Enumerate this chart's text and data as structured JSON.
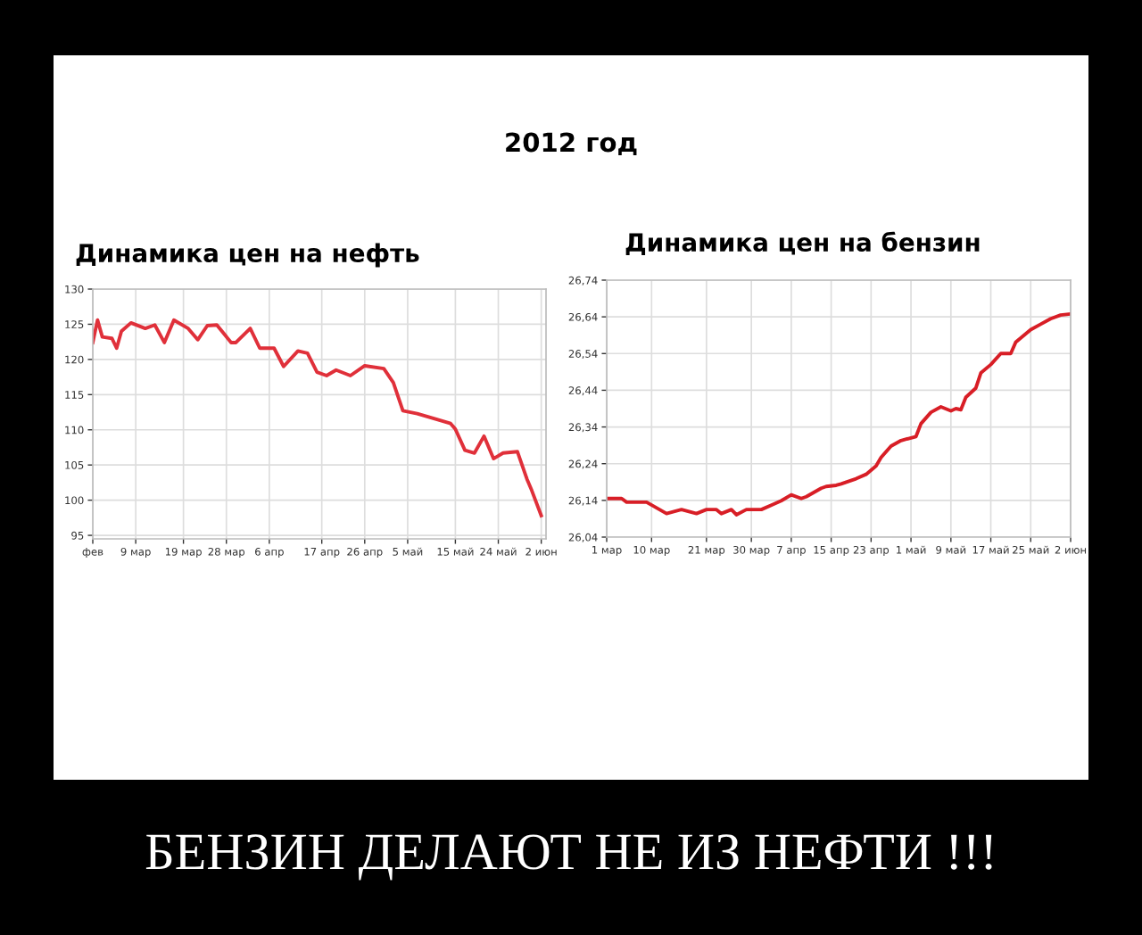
{
  "chart_data": [
    {
      "type": "line",
      "title": "Динамика цен на нефть",
      "annotations": [
        "2012 год",
        "БЕНЗИН ДЕЛАЮТ НЕ ИЗ НЕФТИ !!!"
      ],
      "grid": true,
      "xlim": [
        "2012-02-29",
        "2012-06-03"
      ],
      "xticks": [
        {
          "value": "2012-02-29",
          "label": "фев"
        },
        {
          "value": "2012-03-09",
          "label": "9 мар"
        },
        {
          "value": "2012-03-19",
          "label": "19 мар"
        },
        {
          "value": "2012-03-28",
          "label": "28 мар"
        },
        {
          "value": "2012-04-06",
          "label": "6 апр"
        },
        {
          "value": "2012-04-17",
          "label": "17 апр"
        },
        {
          "value": "2012-04-26",
          "label": "26 апр"
        },
        {
          "value": "2012-05-05",
          "label": "5 май"
        },
        {
          "value": "2012-05-15",
          "label": "15 май"
        },
        {
          "value": "2012-05-24",
          "label": "24 май"
        },
        {
          "value": "2012-06-02",
          "label": "2 июн"
        }
      ],
      "ylim": [
        94.5,
        130
      ],
      "yticks": [
        95,
        100,
        105,
        110,
        115,
        120,
        125,
        130
      ],
      "series": [
        {
          "color": "#e0303a",
          "x": [
            "2012-02-29",
            "2012-03-01",
            "2012-03-02",
            "2012-03-04",
            "2012-03-05",
            "2012-03-06",
            "2012-03-08",
            "2012-03-11",
            "2012-03-13",
            "2012-03-15",
            "2012-03-17",
            "2012-03-20",
            "2012-03-22",
            "2012-03-24",
            "2012-03-26",
            "2012-03-29",
            "2012-03-30",
            "2012-04-02",
            "2012-04-04",
            "2012-04-07",
            "2012-04-09",
            "2012-04-12",
            "2012-04-14",
            "2012-04-16",
            "2012-04-18",
            "2012-04-20",
            "2012-04-23",
            "2012-04-26",
            "2012-04-30",
            "2012-05-02",
            "2012-05-04",
            "2012-05-07",
            "2012-05-11",
            "2012-05-14",
            "2012-05-15",
            "2012-05-17",
            "2012-05-19",
            "2012-05-21",
            "2012-05-23",
            "2012-05-25",
            "2012-05-28",
            "2012-05-30",
            "2012-05-31",
            "2012-06-02"
          ],
          "values": [
            122.4,
            125.6,
            123.2,
            123.0,
            121.6,
            124.0,
            125.2,
            124.4,
            124.9,
            122.4,
            125.6,
            124.4,
            122.8,
            124.8,
            124.9,
            122.4,
            122.4,
            124.4,
            121.6,
            121.6,
            119.0,
            121.2,
            120.9,
            118.2,
            117.7,
            118.5,
            117.7,
            119.1,
            118.7,
            116.7,
            112.7,
            112.3,
            111.5,
            110.9,
            110.1,
            107.1,
            106.7,
            109.1,
            105.9,
            106.7,
            106.9,
            103.0,
            101.4,
            97.8
          ]
        }
      ]
    },
    {
      "type": "line",
      "title": "Динамика цен на бензин",
      "grid": true,
      "xlim": [
        "2012-03-01",
        "2012-06-02"
      ],
      "xticks": [
        {
          "value": "2012-03-01",
          "label": "1 мар"
        },
        {
          "value": "2012-03-10",
          "label": "10 мар"
        },
        {
          "value": "2012-03-21",
          "label": "21 мар"
        },
        {
          "value": "2012-03-30",
          "label": "30 мар"
        },
        {
          "value": "2012-04-07",
          "label": "7 апр"
        },
        {
          "value": "2012-04-15",
          "label": "15 апр"
        },
        {
          "value": "2012-04-23",
          "label": "23 апр"
        },
        {
          "value": "2012-05-01",
          "label": "1 май"
        },
        {
          "value": "2012-05-09",
          "label": "9 май"
        },
        {
          "value": "2012-05-17",
          "label": "17 май"
        },
        {
          "value": "2012-05-25",
          "label": "25 май"
        },
        {
          "value": "2012-06-02",
          "label": "2 июн"
        }
      ],
      "ylim": [
        26.04,
        26.74
      ],
      "yticks": [
        {
          "value": 26.04,
          "label": "26,04"
        },
        {
          "value": 26.14,
          "label": "26,14"
        },
        {
          "value": 26.24,
          "label": "26,24"
        },
        {
          "value": 26.34,
          "label": "26,34"
        },
        {
          "value": 26.44,
          "label": "26,44"
        },
        {
          "value": 26.54,
          "label": "26,54"
        },
        {
          "value": 26.64,
          "label": "26,64"
        },
        {
          "value": 26.74,
          "label": "26,74"
        }
      ],
      "series": [
        {
          "color": "#d81e26",
          "x": [
            "2012-03-01",
            "2012-03-04",
            "2012-03-05",
            "2012-03-09",
            "2012-03-13",
            "2012-03-16",
            "2012-03-19",
            "2012-03-21",
            "2012-03-23",
            "2012-03-24",
            "2012-03-26",
            "2012-03-27",
            "2012-03-29",
            "2012-04-01",
            "2012-04-03",
            "2012-04-05",
            "2012-04-07",
            "2012-04-09",
            "2012-04-10",
            "2012-04-13",
            "2012-04-14",
            "2012-04-16",
            "2012-04-17",
            "2012-04-20",
            "2012-04-22",
            "2012-04-24",
            "2012-04-25",
            "2012-04-27",
            "2012-04-29",
            "2012-05-02",
            "2012-05-03",
            "2012-05-05",
            "2012-05-07",
            "2012-05-09",
            "2012-05-10",
            "2012-05-11",
            "2012-05-12",
            "2012-05-14",
            "2012-05-15",
            "2012-05-17",
            "2012-05-19",
            "2012-05-21",
            "2012-05-22",
            "2012-05-25",
            "2012-05-27",
            "2012-05-29",
            "2012-05-31",
            "2012-06-02"
          ],
          "values": [
            26.145,
            26.145,
            26.135,
            26.135,
            26.104,
            26.115,
            26.104,
            26.115,
            26.115,
            26.104,
            26.115,
            26.101,
            26.115,
            26.115,
            26.127,
            26.139,
            26.155,
            26.145,
            26.15,
            26.173,
            26.178,
            26.181,
            26.185,
            26.199,
            26.211,
            26.234,
            26.257,
            26.288,
            26.303,
            26.314,
            26.349,
            26.38,
            26.395,
            26.384,
            26.39,
            26.387,
            26.421,
            26.446,
            26.487,
            26.51,
            26.54,
            26.54,
            26.571,
            26.605,
            26.62,
            26.635,
            26.645,
            26.648
          ]
        }
      ]
    }
  ]
}
